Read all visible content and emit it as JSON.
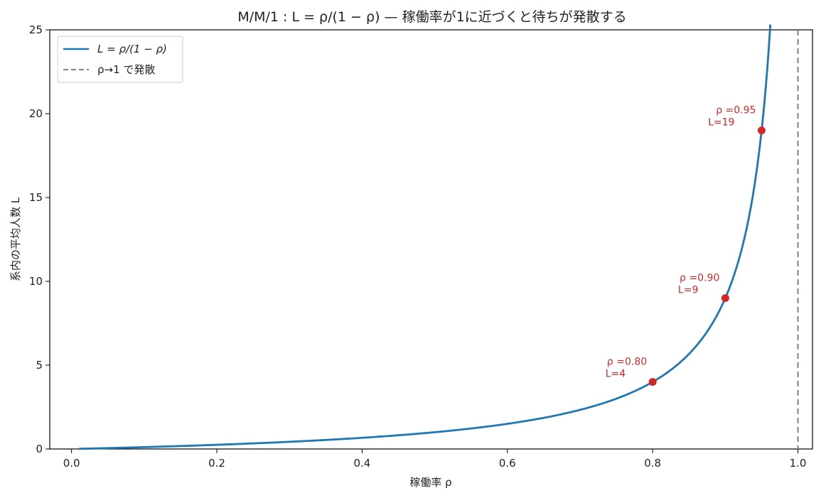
{
  "chart_data": {
    "type": "line",
    "title": "M/M/1 : L = ρ/(1 − ρ) — 稼働率が1に近づくと待ちが発散する",
    "xlabel": "稼働率 ρ",
    "ylabel": "系内の平均人数 L",
    "xlim": [
      -0.03,
      1.02
    ],
    "ylim": [
      0,
      25
    ],
    "xticks": [
      0.0,
      0.2,
      0.4,
      0.6,
      0.8,
      1.0
    ],
    "xtick_labels": [
      "0.0",
      "0.2",
      "0.4",
      "0.6",
      "0.8",
      "1.0"
    ],
    "yticks": [
      0,
      5,
      10,
      15,
      20,
      25
    ],
    "ytick_labels": [
      "0",
      "5",
      "10",
      "15",
      "20",
      "25"
    ],
    "grid": false,
    "legend_position": "top-left",
    "series": [
      {
        "name": "L = ρ/(1 − ρ)",
        "color": "#1f77b4",
        "style": "solid",
        "formula": "L = rho / (1 - rho)",
        "x_range": [
          0.01,
          0.962
        ]
      },
      {
        "name": "ρ→1 で発散",
        "color": "#808080",
        "style": "dashed",
        "x": 1.0
      }
    ],
    "highlight_points": {
      "color": "#d62728",
      "points": [
        {
          "x": 0.8,
          "y": 4,
          "label_rho": "ρ =0.80",
          "label_L": "L=4"
        },
        {
          "x": 0.9,
          "y": 9,
          "label_rho": "ρ =0.90",
          "label_L": "L=9"
        },
        {
          "x": 0.95,
          "y": 19,
          "label_rho": "ρ =0.95",
          "label_L": "L=19"
        }
      ]
    }
  }
}
